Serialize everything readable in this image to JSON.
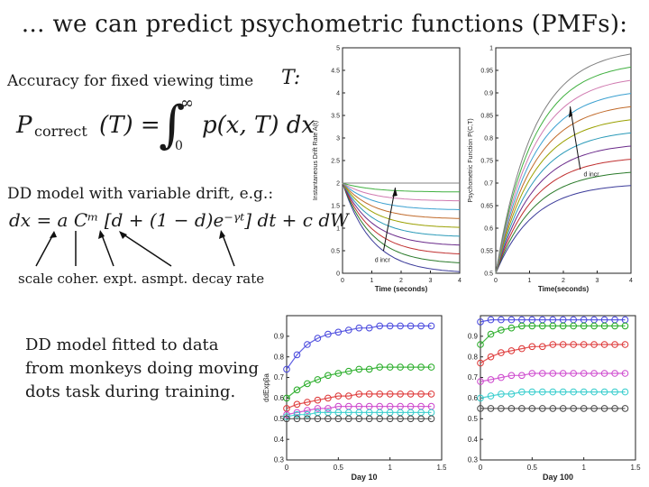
{
  "slide": {
    "title": "… we can predict psychometric functions (PMFs):",
    "accuracy_label": "Accuracy for fixed viewing time",
    "accuracy_var": "T:",
    "eq1_lhs": "P",
    "eq1_lhs_sub": "correct",
    "eq1_lhs_arg": "(T) =",
    "eq1_int_upper": "∞",
    "eq1_int_lower": "0",
    "eq1_rhs": "p(x, T) dx",
    "dd_label": "DD model with variable drift, e.g.:",
    "eq2": "dx = a Cᵐ [d + (1 − d)e⁻ᵞᵗ] dt + c dW",
    "param_labels": "scale  coher.  expt.  asmpt. decay rate",
    "fit_text_1": "DD model fitted to data",
    "fit_text_2": "from monkeys doing moving",
    "fit_text_3": "dots task during training."
  },
  "chart_data": [
    {
      "type": "line",
      "xlabel": "Time (seconds)",
      "ylabel": "Instantaneous Drift Rate A(t)",
      "xlim": [
        0,
        4
      ],
      "ylim": [
        0,
        5
      ],
      "x_ticks": [
        "0",
        "1",
        "2",
        "3",
        "4"
      ],
      "y_ticks": [
        "0",
        "0.5",
        "1",
        "1.5",
        "2",
        "2.5",
        "3",
        "3.5",
        "4",
        "4.5",
        "5"
      ],
      "annotation": "d incr",
      "curve_family": "A(t) = 2[d + (1-d)e^{-t}], d from 0 to 1",
      "d_values": [
        0,
        0.1,
        0.2,
        0.3,
        0.4,
        0.5,
        0.6,
        0.7,
        0.8,
        0.9,
        1.0
      ],
      "colors": [
        "#3b3b9a",
        "#2a7a2a",
        "#c03030",
        "#6a2a8a",
        "#2a9ab8",
        "#9aa000",
        "#c06a2a",
        "#3aa0d0",
        "#d07ab0",
        "#40b040",
        "#808080"
      ]
    },
    {
      "type": "line",
      "xlabel": "Time(seconds)",
      "ylabel": "Psychometric Function P(C,T)",
      "xlim": [
        0,
        4
      ],
      "ylim": [
        0.5,
        1
      ],
      "x_ticks": [
        "0",
        "1",
        "2",
        "3",
        "4"
      ],
      "y_ticks": [
        "0.5",
        "0.55",
        "0.6",
        "0.65",
        "0.7",
        "0.75",
        "0.8",
        "0.85",
        "0.9",
        "0.95",
        "1"
      ],
      "annotation": "d incr",
      "asymptotes": [
        0.7,
        0.73,
        0.76,
        0.79,
        0.82,
        0.85,
        0.88,
        0.91,
        0.94,
        0.97,
        1.0
      ],
      "colors": [
        "#3b3b9a",
        "#2a7a2a",
        "#c03030",
        "#6a2a8a",
        "#2a9ab8",
        "#9aa000",
        "#c06a2a",
        "#3aa0d0",
        "#d07ab0",
        "#40b040",
        "#808080"
      ]
    },
    {
      "type": "line",
      "xlabel": "Day 10",
      "ylabel": "ddExpβa",
      "xlim": [
        0,
        1.5
      ],
      "ylim": [
        0.3,
        1.0
      ],
      "x_ticks": [
        "0",
        "0.5",
        "1",
        "1.5"
      ],
      "y_ticks": [
        "0.3",
        "0.4",
        "0.5",
        "0.6",
        "0.7",
        "0.8",
        "0.9"
      ],
      "x": [
        0,
        0.1,
        0.2,
        0.3,
        0.4,
        0.5,
        0.6,
        0.7,
        0.8,
        0.9,
        1.0,
        1.1,
        1.2,
        1.3,
        1.4
      ],
      "series": [
        {
          "color": "#4444dd",
          "values": [
            0.74,
            0.81,
            0.86,
            0.89,
            0.91,
            0.92,
            0.93,
            0.94,
            0.94,
            0.95,
            0.95,
            0.95,
            0.95,
            0.95,
            0.95
          ]
        },
        {
          "color": "#22aa22",
          "values": [
            0.6,
            0.64,
            0.67,
            0.69,
            0.71,
            0.72,
            0.73,
            0.74,
            0.74,
            0.75,
            0.75,
            0.75,
            0.75,
            0.75,
            0.75
          ]
        },
        {
          "color": "#dd3333",
          "values": [
            0.55,
            0.57,
            0.58,
            0.59,
            0.6,
            0.61,
            0.61,
            0.62,
            0.62,
            0.62,
            0.62,
            0.62,
            0.62,
            0.62,
            0.62
          ]
        },
        {
          "color": "#cc44cc",
          "values": [
            0.52,
            0.53,
            0.54,
            0.55,
            0.55,
            0.56,
            0.56,
            0.56,
            0.56,
            0.56,
            0.56,
            0.56,
            0.56,
            0.56,
            0.56
          ]
        },
        {
          "color": "#33cccc",
          "values": [
            0.51,
            0.52,
            0.52,
            0.53,
            0.53,
            0.53,
            0.53,
            0.53,
            0.53,
            0.53,
            0.53,
            0.53,
            0.53,
            0.53,
            0.53
          ]
        },
        {
          "color": "#444444",
          "values": [
            0.5,
            0.5,
            0.5,
            0.5,
            0.5,
            0.5,
            0.5,
            0.5,
            0.5,
            0.5,
            0.5,
            0.5,
            0.5,
            0.5,
            0.5
          ]
        }
      ]
    },
    {
      "type": "line",
      "xlabel": "Day 100",
      "xlim": [
        0,
        1.5
      ],
      "ylim": [
        0.3,
        1.0
      ],
      "x_ticks": [
        "0",
        "0.5",
        "1",
        "1.5"
      ],
      "y_ticks": [
        "0.3",
        "0.4",
        "0.5",
        "0.6",
        "0.7",
        "0.8",
        "0.9"
      ],
      "x": [
        0,
        0.1,
        0.2,
        0.3,
        0.4,
        0.5,
        0.6,
        0.7,
        0.8,
        0.9,
        1.0,
        1.1,
        1.2,
        1.3,
        1.4
      ],
      "series": [
        {
          "color": "#4444dd",
          "values": [
            0.97,
            0.98,
            0.98,
            0.98,
            0.98,
            0.98,
            0.98,
            0.98,
            0.98,
            0.98,
            0.98,
            0.98,
            0.98,
            0.98,
            0.98
          ]
        },
        {
          "color": "#22aa22",
          "values": [
            0.86,
            0.91,
            0.93,
            0.94,
            0.95,
            0.95,
            0.95,
            0.95,
            0.95,
            0.95,
            0.95,
            0.95,
            0.95,
            0.95,
            0.95
          ]
        },
        {
          "color": "#dd3333",
          "values": [
            0.77,
            0.8,
            0.82,
            0.83,
            0.84,
            0.85,
            0.85,
            0.86,
            0.86,
            0.86,
            0.86,
            0.86,
            0.86,
            0.86,
            0.86
          ]
        },
        {
          "color": "#cc44cc",
          "values": [
            0.68,
            0.69,
            0.7,
            0.71,
            0.71,
            0.72,
            0.72,
            0.72,
            0.72,
            0.72,
            0.72,
            0.72,
            0.72,
            0.72,
            0.72
          ]
        },
        {
          "color": "#33cccc",
          "values": [
            0.6,
            0.61,
            0.62,
            0.62,
            0.63,
            0.63,
            0.63,
            0.63,
            0.63,
            0.63,
            0.63,
            0.63,
            0.63,
            0.63,
            0.63
          ]
        },
        {
          "color": "#444444",
          "values": [
            0.55,
            0.55,
            0.55,
            0.55,
            0.55,
            0.55,
            0.55,
            0.55,
            0.55,
            0.55,
            0.55,
            0.55,
            0.55,
            0.55,
            0.55
          ]
        }
      ]
    }
  ]
}
